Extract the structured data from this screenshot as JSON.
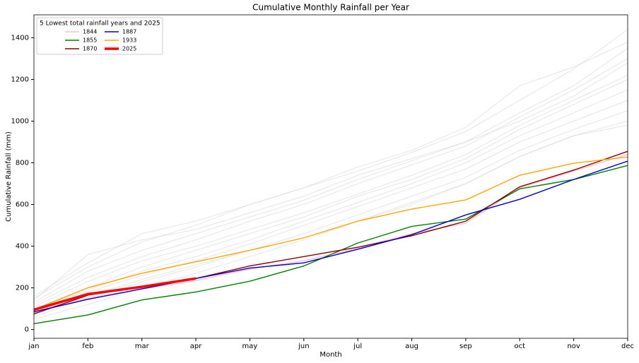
{
  "chart_data": {
    "type": "line",
    "title": "Cumulative Monthly Rainfall per Year",
    "x_label": "Month",
    "y_label": "Cumulative Rainfall (mm)",
    "legend_title": "5 Lowest total rainfall years and 2025",
    "legend_position": "upper left",
    "categories": [
      "jan",
      "feb",
      "mar",
      "apr",
      "may",
      "jun",
      "jul",
      "aug",
      "sep",
      "oct",
      "nov",
      "dec"
    ],
    "ylim": [
      -42,
      1510
    ],
    "yticks": [
      0,
      200,
      400,
      600,
      800,
      1000,
      1200,
      1400
    ],
    "series": [
      {
        "color": "#d3d3d3",
        "values": [
          150,
          300,
          420,
          500,
          600,
          680,
          760,
          850,
          950,
          1100,
          1250,
          1440
        ]
      },
      {
        "color": "#d3d3d3",
        "values": [
          120,
          250,
          350,
          430,
          520,
          600,
          700,
          790,
          880,
          1020,
          1150,
          1300
        ]
      },
      {
        "color": "#d3d3d3",
        "values": [
          100,
          200,
          300,
          380,
          460,
          540,
          640,
          720,
          820,
          960,
          1080,
          1200
        ]
      },
      {
        "color": "#d3d3d3",
        "values": [
          80,
          180,
          260,
          330,
          410,
          500,
          590,
          680,
          770,
          900,
          1000,
          1100
        ]
      },
      {
        "color": "#d3d3d3",
        "values": [
          60,
          150,
          230,
          300,
          380,
          460,
          550,
          640,
          730,
          860,
          960,
          1050
        ]
      },
      {
        "color": "#d3d3d3",
        "values": [
          130,
          280,
          380,
          460,
          540,
          620,
          720,
          810,
          900,
          1040,
          1170,
          1350
        ]
      },
      {
        "color": "#d3d3d3",
        "values": [
          70,
          160,
          240,
          310,
          380,
          440,
          520,
          600,
          700,
          830,
          930,
          1000
        ]
      },
      {
        "color": "#d3d3d3",
        "values": [
          110,
          230,
          330,
          400,
          480,
          560,
          650,
          740,
          840,
          980,
          1100,
          1220
        ]
      },
      {
        "color": "#d3d3d3",
        "values": [
          140,
          360,
          430,
          480,
          560,
          640,
          740,
          820,
          900,
          1000,
          1120,
          1280
        ]
      },
      {
        "color": "#d3d3d3",
        "values": [
          90,
          190,
          280,
          350,
          430,
          520,
          610,
          700,
          800,
          930,
          1040,
          1150
        ]
      },
      {
        "color": "#d3d3d3",
        "values": [
          50,
          120,
          200,
          270,
          350,
          430,
          520,
          610,
          700,
          830,
          930,
          980
        ]
      },
      {
        "color": "#d3d3d3",
        "values": [
          160,
          320,
          460,
          520,
          600,
          680,
          780,
          860,
          970,
          1170,
          1260,
          1380
        ]
      },
      {
        "name": "1844",
        "color": "#ffc0cb",
        "values": [
          90,
          150,
          195,
          235,
          290,
          330,
          390,
          460,
          510,
          680,
          760,
          840
        ]
      },
      {
        "name": "1855",
        "color": "#008000",
        "values": [
          28,
          70,
          142,
          180,
          232,
          305,
          415,
          495,
          530,
          675,
          720,
          787
        ]
      },
      {
        "name": "1870",
        "color": "#8b0000",
        "values": [
          75,
          165,
          205,
          245,
          305,
          350,
          395,
          450,
          520,
          685,
          765,
          855
        ]
      },
      {
        "name": "1887",
        "color": "#0000cd",
        "values": [
          85,
          145,
          195,
          245,
          295,
          320,
          385,
          455,
          550,
          625,
          720,
          808
        ]
      },
      {
        "name": "1933",
        "color": "#ffa500",
        "values": [
          95,
          200,
          270,
          325,
          380,
          440,
          520,
          578,
          622,
          740,
          798,
          828
        ]
      },
      {
        "name": "2025",
        "color": "#ff0000",
        "linewidth": 3.5,
        "values": [
          95,
          170,
          205,
          245,
          null,
          null,
          null,
          null,
          null,
          null,
          null,
          null
        ]
      }
    ]
  }
}
